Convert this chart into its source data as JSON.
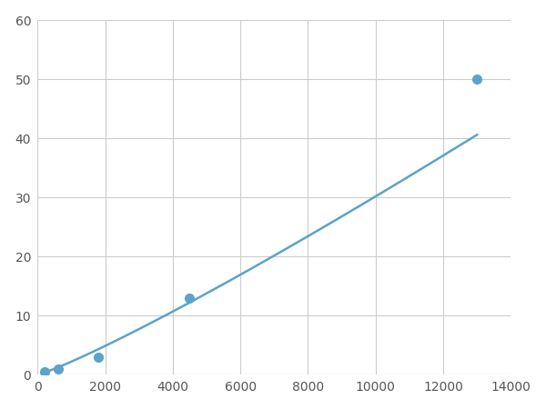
{
  "x_points": [
    200,
    600,
    1800,
    4500,
    13000
  ],
  "y_points": [
    0.5,
    1.0,
    3.0,
    13.0,
    50.0
  ],
  "line_color": "#5ba3c9",
  "marker_color": "#5ba3c9",
  "marker_size": 7,
  "line_width": 1.8,
  "xlim": [
    0,
    14000
  ],
  "ylim": [
    0,
    60
  ],
  "xticks": [
    0,
    2000,
    4000,
    6000,
    8000,
    10000,
    12000,
    14000
  ],
  "yticks": [
    0,
    10,
    20,
    30,
    40,
    50,
    60
  ],
  "grid_color": "#cccccc",
  "grid_linewidth": 0.8,
  "background_color": "#ffffff",
  "figsize": [
    6.0,
    4.5
  ],
  "dpi": 100
}
